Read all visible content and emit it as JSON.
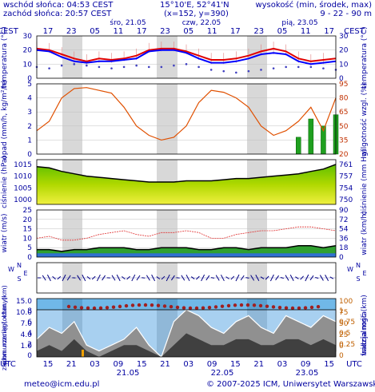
{
  "header": {
    "sunrise": "wschód słońca: 04:53 CEST",
    "sunset": "zachód słońca: 20:57 CEST",
    "coords": "15°10'E, 52°41'N",
    "grid": "(x=152, y=390)",
    "elevation_label": "wysokość (min, środek, max)",
    "elevation_values": "9 - 22 - 90 m"
  },
  "footer": {
    "email": "meteo@icm.edu.pl",
    "copyright": "© 2007-2025 ICM, Uniwersytet Warszawski"
  },
  "chart_data": [
    {
      "type": "line",
      "name": "temperatura",
      "ylabel": "temperatura (°C)",
      "yticks": [
        "30",
        "20",
        "10",
        "0"
      ],
      "ylim": [
        0,
        30
      ],
      "hours_top": [
        "17",
        "23",
        "05",
        "11",
        "17",
        "23",
        "05",
        "11",
        "17",
        "23",
        "05",
        "11",
        "17"
      ],
      "day_top": [
        "śro, 21.05",
        "czw, 22.05",
        "pią, 23.05"
      ],
      "timezone_label": "CEST",
      "series": [
        {
          "name": "max",
          "color": "#e00000",
          "values": [
            21,
            20,
            17,
            14,
            12,
            14,
            13,
            14,
            16,
            20,
            21,
            21,
            19,
            16,
            13,
            13,
            14,
            16,
            19,
            21,
            19,
            14,
            12,
            13,
            14
          ]
        },
        {
          "name": "mean",
          "color": "#0000ff",
          "values": [
            20,
            19,
            15,
            12,
            11,
            12,
            12,
            13,
            14,
            19,
            20,
            20,
            18,
            14,
            11,
            11,
            12,
            14,
            17,
            18,
            17,
            12,
            10,
            11,
            12
          ]
        },
        {
          "name": "dew",
          "color": "#4040c0",
          "values": [
            8,
            7,
            9,
            10,
            9,
            8,
            7,
            8,
            9,
            8,
            8,
            9,
            10,
            8,
            6,
            5,
            4,
            5,
            6,
            7,
            8,
            8,
            8,
            7,
            6
          ]
        }
      ]
    },
    {
      "type": "bar",
      "name": "opad",
      "ylabel": "opad (mm/h, kg/m²/h)",
      "ylabel_right": "wilgotność wzgl. (%)",
      "yticks": [
        "5",
        "4",
        "3",
        "2",
        "1",
        "0"
      ],
      "yticks_right": [
        "95",
        "80",
        "65",
        "50",
        "35",
        "20"
      ],
      "ylim": [
        0,
        5
      ],
      "humidity": [
        45,
        55,
        80,
        90,
        91,
        88,
        85,
        70,
        50,
        40,
        35,
        38,
        50,
        75,
        88,
        86,
        80,
        70,
        50,
        40,
        45,
        55,
        70,
        45,
        80
      ],
      "precip": [
        0,
        0,
        0,
        0,
        0,
        0,
        0,
        0,
        0,
        0,
        0,
        0,
        0,
        0,
        0,
        0,
        0,
        0,
        0,
        0,
        0,
        1.2,
        2.5,
        2.0,
        2.8
      ]
    },
    {
      "type": "area",
      "name": "ciśnienie",
      "ylabel": "ciśnienie (hPa)",
      "ylabel_right": "ciśnienie (mm Hg)",
      "yticks": [
        "1015",
        "1010",
        "1005",
        "1000"
      ],
      "yticks_right": [
        "761",
        "757",
        "754",
        "750"
      ],
      "ylim": [
        998,
        1017
      ],
      "values": [
        1014,
        1013.5,
        1012,
        1011,
        1010,
        1009.5,
        1009,
        1008.5,
        1008,
        1007.5,
        1007.5,
        1007.5,
        1008,
        1008,
        1008,
        1008.5,
        1009,
        1009,
        1009.5,
        1010,
        1010.5,
        1011,
        1012,
        1013,
        1015
      ]
    },
    {
      "type": "area",
      "name": "wiatr",
      "ylabel": "wiatr (m/s)",
      "ylabel_right": "wiatr (km/h)",
      "yticks": [
        "25",
        "20",
        "15",
        "10",
        "5",
        "0"
      ],
      "yticks_right": [
        "90",
        "72",
        "54",
        "36",
        "18",
        "0"
      ],
      "ylim": [
        0,
        25
      ],
      "speed": [
        4,
        4,
        3,
        4,
        4,
        5,
        5,
        5,
        4,
        4,
        5,
        5,
        5,
        4,
        4,
        5,
        5,
        4,
        5,
        5,
        5,
        6,
        6,
        5,
        6
      ],
      "gust": [
        10,
        11,
        9,
        9,
        10,
        12,
        13,
        14,
        12,
        11,
        13,
        13,
        14,
        13,
        10,
        10,
        12,
        13,
        14,
        14,
        15,
        16,
        16,
        15,
        14
      ]
    },
    {
      "type": "scatter",
      "name": "kierunek",
      "ylabel": "W N E S"
    },
    {
      "type": "scatter",
      "name": "podstawa chmur",
      "ylabel": "pion. rozciągł. chm. (km)",
      "ylabel_right": "widzialność (km)",
      "yticks": [
        "15.0",
        "10.0",
        "7.0",
        "4.0",
        "1.0"
      ],
      "yticks_right": [
        "100",
        "75",
        "50",
        "25",
        "0"
      ],
      "visibility": [
        55,
        60,
        58,
        55,
        50,
        60,
        65,
        70,
        72,
        75,
        72,
        70,
        68,
        70,
        72,
        75,
        70,
        68,
        66,
        60,
        55,
        60,
        65,
        62,
        58
      ]
    },
    {
      "type": "area",
      "name": "zachmurzenie",
      "ylabel": "zachmurzenie (oktany)",
      "ylabel_right": "frakcja mgła",
      "yticks": [
        "8",
        "6",
        "4",
        "2",
        "0"
      ],
      "yticks_right": [
        "1",
        "0.75",
        "0.5",
        "0.25",
        "0"
      ],
      "ylim": [
        0,
        8
      ],
      "cloud_total": [
        3,
        5,
        4,
        6,
        2,
        1,
        2,
        3,
        5,
        2,
        0,
        6,
        8,
        7,
        5,
        4,
        6,
        7,
        5,
        4,
        7,
        6,
        5,
        7,
        6
      ],
      "cloud_low": [
        1,
        2,
        1,
        3,
        1,
        0,
        1,
        2,
        2,
        1,
        0,
        2,
        4,
        3,
        2,
        2,
        3,
        3,
        2,
        2,
        3,
        3,
        2,
        3,
        2
      ],
      "hours_bottom": [
        "15",
        "21",
        "03",
        "09",
        "15",
        "21",
        "03",
        "09",
        "15",
        "21",
        "03",
        "09",
        "15"
      ],
      "dates_bottom": [
        "21.05",
        "22.05",
        "23.05"
      ],
      "timezone_label": "UTC"
    }
  ]
}
